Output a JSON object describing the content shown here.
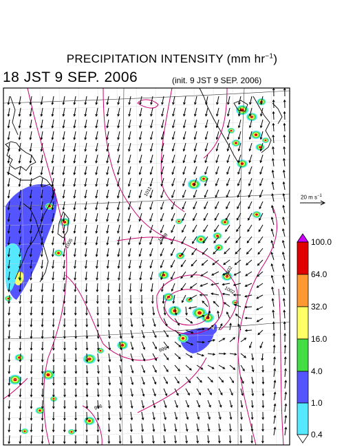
{
  "title_main": "PRECIPITATION INTENSITY (mm hr",
  "title_exp": "−1",
  "title_close": ")",
  "valid_time": "18 JST 9 SEP. 2006",
  "init_time": "(init. 9 JST 9 SEP. 2006)",
  "reference_vector": {
    "label_main": "20 m s",
    "label_exp": "−1",
    "speed": 20
  },
  "colorbar": {
    "levels": [
      "100.0",
      "64.0",
      "32.0",
      "16.0",
      "4.0",
      "1.0",
      "0.4"
    ],
    "colors": [
      "#cc00ff",
      "#e00000",
      "#ff9933",
      "#ffff66",
      "#44dd44",
      "#5555ff",
      "#55e8ff"
    ]
  },
  "isobar_labels": [
    "1011",
    "1008",
    "1005",
    "1002",
    "1002",
    "999",
    "996"
  ],
  "storm_center": "typhoon low SE of map center",
  "colors": {
    "isobar": "#c8006e",
    "land": "#000000",
    "grid": "#888888",
    "vector": "#000000"
  }
}
